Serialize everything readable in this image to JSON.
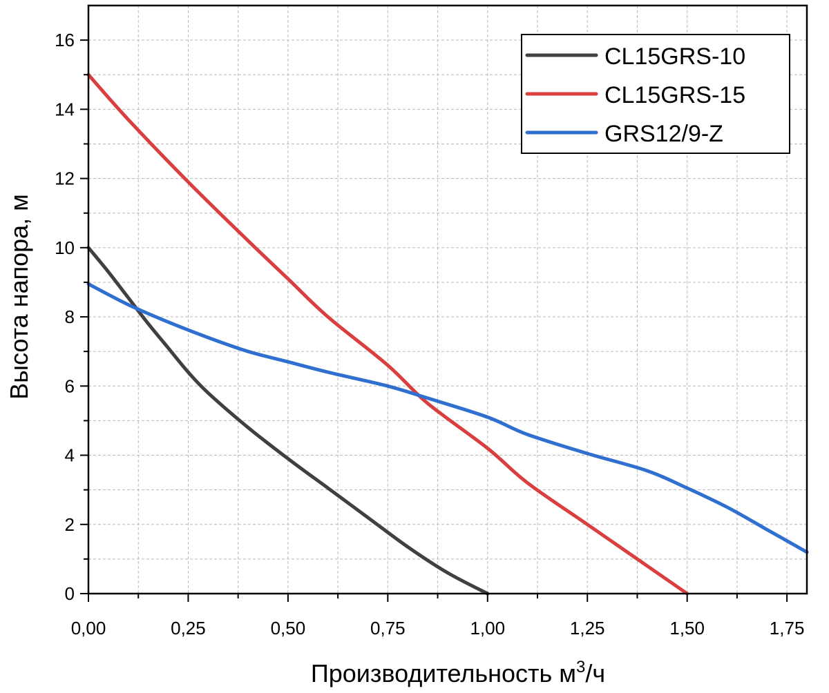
{
  "chart_data": {
    "type": "line",
    "title": "",
    "xlabel": "Производительность м",
    "xlabel_sup": "3",
    "xlabel_suffix": "/ч",
    "ylabel": "Высота напора, м",
    "xlim": [
      0,
      1.8
    ],
    "ylim": [
      0,
      17
    ],
    "xticks": [
      0,
      0.25,
      0.5,
      0.75,
      1.0,
      1.25,
      1.5,
      1.75
    ],
    "xtick_labels": [
      "0,00",
      "0,25",
      "0,50",
      "0,75",
      "1,00",
      "1,25",
      "1,50",
      "1,75"
    ],
    "yticks": [
      0,
      2,
      4,
      6,
      8,
      10,
      12,
      14,
      16
    ],
    "ytick_labels": [
      "0",
      "2",
      "4",
      "6",
      "8",
      "10",
      "12",
      "14",
      "16"
    ],
    "grid": true,
    "legend_position": "top-right",
    "series": [
      {
        "name": "CL15GRS-10",
        "color": "#404040",
        "x": [
          0,
          0.05,
          0.1,
          0.15,
          0.2,
          0.25,
          0.3,
          0.4,
          0.5,
          0.6,
          0.7,
          0.8,
          0.9,
          1.0
        ],
        "y": [
          10.0,
          9.3,
          8.55,
          7.8,
          7.1,
          6.4,
          5.8,
          4.8,
          3.9,
          3.05,
          2.2,
          1.35,
          0.6,
          0.0
        ]
      },
      {
        "name": "CL15GRS-15",
        "color": "#d93f3f",
        "x": [
          0,
          0.1,
          0.25,
          0.4,
          0.5,
          0.6,
          0.75,
          0.85,
          1.0,
          1.1,
          1.25,
          1.4,
          1.5
        ],
        "y": [
          15.0,
          13.7,
          11.9,
          10.2,
          9.1,
          8.0,
          6.6,
          5.5,
          4.2,
          3.2,
          2.0,
          0.8,
          0.0
        ]
      },
      {
        "name": "GRS12/9-Z",
        "color": "#2f6fd0",
        "x": [
          0,
          0.1,
          0.2,
          0.3,
          0.4,
          0.5,
          0.6,
          0.75,
          0.85,
          1.0,
          1.1,
          1.25,
          1.4,
          1.5,
          1.6,
          1.7,
          1.8
        ],
        "y": [
          8.95,
          8.35,
          7.85,
          7.4,
          7.0,
          6.7,
          6.4,
          6.0,
          5.65,
          5.1,
          4.6,
          4.05,
          3.55,
          3.05,
          2.5,
          1.85,
          1.2
        ]
      }
    ]
  }
}
